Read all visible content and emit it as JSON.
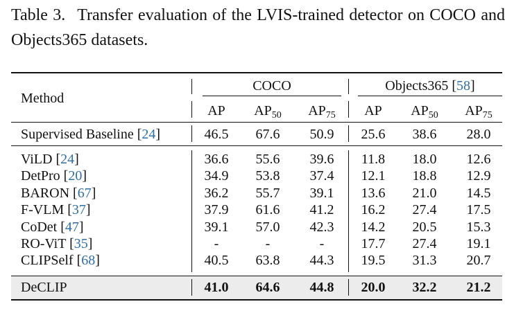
{
  "caption": {
    "label": "Table 3.",
    "text": "Transfer evaluation of the LVIS-trained detector on COCO and Objects365 datasets."
  },
  "header": {
    "method": "Method",
    "group1": "COCO",
    "group2_name": "Objects365",
    "group2_cite": "58",
    "metric": "AP",
    "sub50": "50",
    "sub75": "75"
  },
  "baseline": {
    "name": "Supervised Baseline",
    "cite": "24",
    "coco": [
      "46.5",
      "67.6",
      "50.9"
    ],
    "o365": [
      "25.6",
      "38.6",
      "28.0"
    ]
  },
  "rows": [
    {
      "name": "ViLD",
      "cite": "24",
      "coco": [
        "36.6",
        "55.6",
        "39.6"
      ],
      "o365": [
        "11.8",
        "18.0",
        "12.6"
      ]
    },
    {
      "name": "DetPro",
      "cite": "20",
      "coco": [
        "34.9",
        "53.8",
        "37.4"
      ],
      "o365": [
        "12.1",
        "18.8",
        "12.9"
      ]
    },
    {
      "name": "BARON",
      "cite": "67",
      "coco": [
        "36.2",
        "55.7",
        "39.1"
      ],
      "o365": [
        "13.6",
        "21.0",
        "14.5"
      ]
    },
    {
      "name": "F-VLM",
      "cite": "37",
      "coco": [
        "37.9",
        "61.6",
        "41.2"
      ],
      "o365": [
        "16.2",
        "27.4",
        "17.5"
      ]
    },
    {
      "name": "CoDet",
      "cite": "47",
      "coco": [
        "39.1",
        "57.0",
        "42.3"
      ],
      "o365": [
        "14.2",
        "20.5",
        "15.3"
      ]
    },
    {
      "name": "RO-ViT",
      "cite": "35",
      "coco": [
        "-",
        "-",
        "-"
      ],
      "o365": [
        "17.7",
        "27.4",
        "19.1"
      ]
    },
    {
      "name": "CLIPSelf",
      "cite": "68",
      "coco": [
        "40.5",
        "63.8",
        "44.3"
      ],
      "o365": [
        "19.5",
        "31.3",
        "20.7"
      ]
    }
  ],
  "ours": {
    "name": "DeCLIP",
    "coco": [
      "41.0",
      "64.6",
      "44.8"
    ],
    "o365": [
      "20.0",
      "32.2",
      "21.2"
    ]
  }
}
